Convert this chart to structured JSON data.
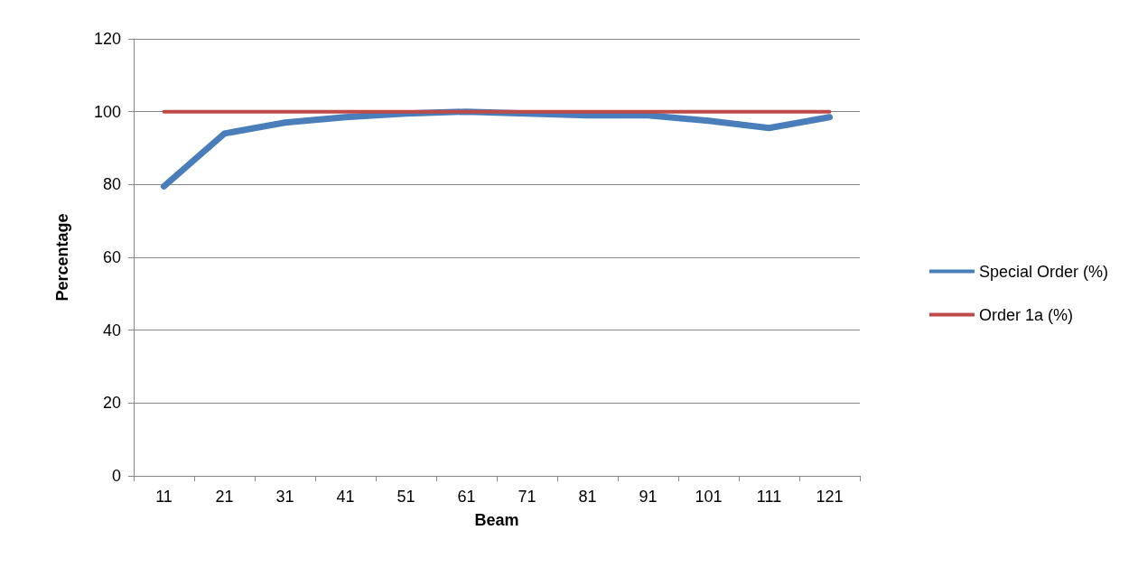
{
  "chart_data": {
    "type": "line",
    "xlabel": "Beam",
    "ylabel": "Percentage",
    "categories": [
      "11",
      "21",
      "31",
      "41",
      "51",
      "61",
      "71",
      "81",
      "91",
      "101",
      "111",
      "121"
    ],
    "series": [
      {
        "name": "Special Order (%)",
        "color": "#4a7ebb",
        "values": [
          79.5,
          94,
          97,
          98.5,
          99.5,
          100,
          99.5,
          99,
          99,
          97.5,
          95.5,
          98.5
        ]
      },
      {
        "name": "Order 1a (%)",
        "color": "#be4b48",
        "values": [
          100,
          100,
          100,
          100,
          100,
          100,
          100,
          100,
          100,
          100,
          100,
          100
        ]
      }
    ],
    "ylim": [
      0,
      120
    ],
    "yticks": [
      0,
      20,
      40,
      60,
      80,
      100,
      120
    ],
    "grid": "y",
    "legend": "right",
    "marker": "none",
    "line_style": "solid"
  }
}
